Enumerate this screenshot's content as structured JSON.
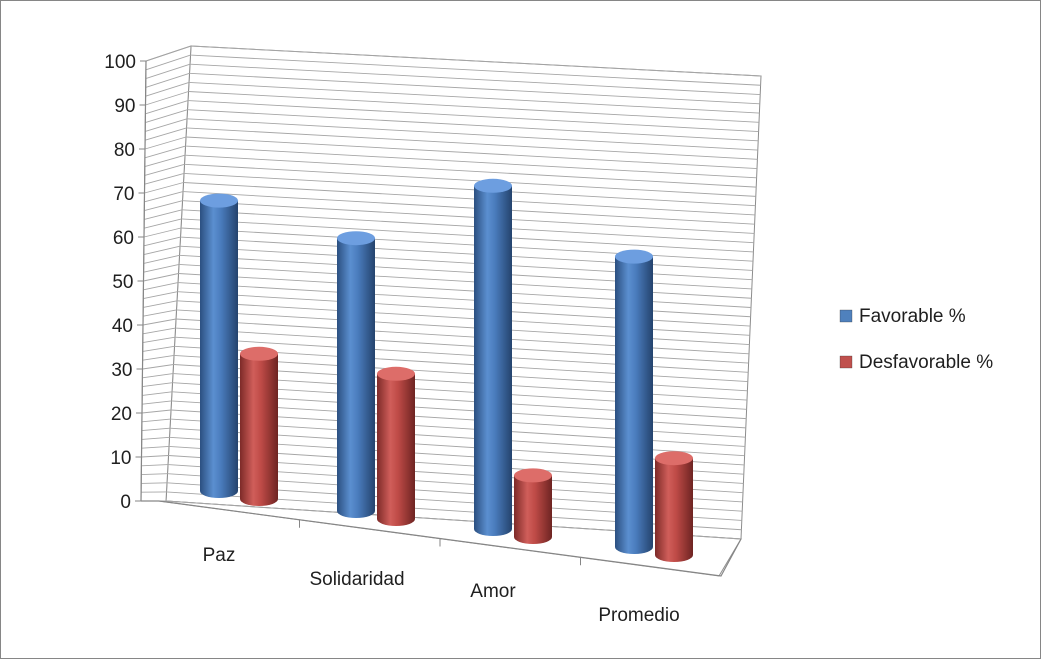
{
  "chart_data": {
    "type": "bar",
    "style": "3d-cylinder",
    "categories": [
      "Paz",
      "Solidaridad",
      "Amor",
      "Promedio"
    ],
    "series": [
      {
        "name": "Favorable %",
        "values": [
          66,
          62,
          78,
          66
        ],
        "color": "#4F81BD"
      },
      {
        "name": "Desfavorable %",
        "values": [
          33,
          33,
          14,
          22
        ],
        "color": "#C0504D"
      }
    ],
    "ylim": [
      0,
      100
    ],
    "yticks": [
      0,
      10,
      20,
      30,
      40,
      50,
      60,
      70,
      80,
      90,
      100
    ],
    "grid": true,
    "legend_position": "right"
  }
}
